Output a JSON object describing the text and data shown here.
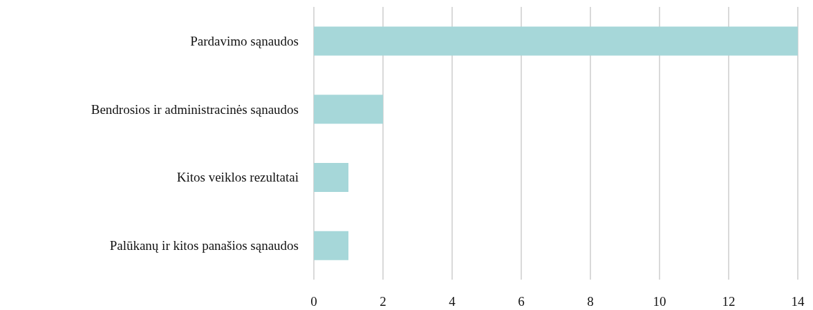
{
  "chart_data": {
    "type": "bar",
    "orientation": "horizontal",
    "categories": [
      "Pardavimo sąnaudos",
      "Bendrosios ir administracinės sąnaudos",
      "Kitos veiklos rezultatai",
      "Palūkanų ir kitos panašios sąnaudos"
    ],
    "values": [
      14,
      2,
      1,
      1
    ],
    "color": "#a6d7d9",
    "xlim": [
      0,
      14
    ],
    "xticks": [
      0,
      2,
      4,
      6,
      8,
      10,
      12,
      14
    ],
    "grid": "x"
  }
}
